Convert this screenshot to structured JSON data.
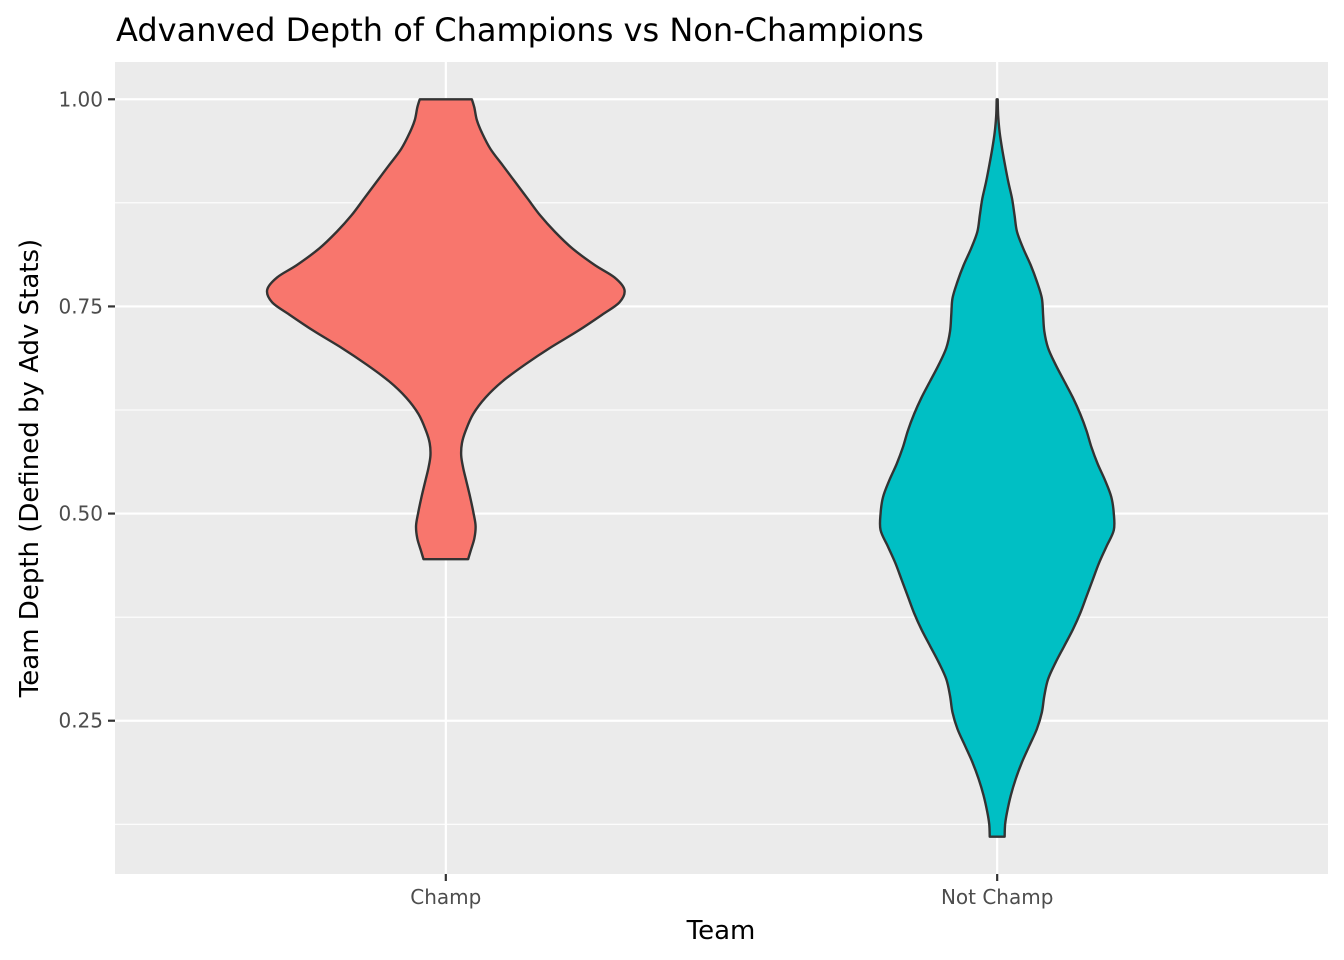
{
  "chart_data": {
    "type": "violin",
    "title": "Advanved Depth of Champions vs Non-Champions",
    "xlabel": "Team",
    "ylabel": "Team Depth (Defined by Adv Stats)",
    "categories": [
      "Champ",
      "Not Champ"
    ],
    "y_ticks": [
      "0.25",
      "0.50",
      "0.75",
      "1.00"
    ],
    "ylim": [
      0.065,
      1.045
    ],
    "grid": true,
    "legend": "none",
    "series": [
      {
        "category": "Champ",
        "color": "#F8766D",
        "range": [
          0.445,
          1.0
        ],
        "density_profile": [
          [
            1.0,
            0.105
          ],
          [
            0.99,
            0.115
          ],
          [
            0.975,
            0.125
          ],
          [
            0.96,
            0.145
          ],
          [
            0.94,
            0.18
          ],
          [
            0.92,
            0.23
          ],
          [
            0.9,
            0.28
          ],
          [
            0.88,
            0.33
          ],
          [
            0.86,
            0.38
          ],
          [
            0.84,
            0.44
          ],
          [
            0.82,
            0.51
          ],
          [
            0.8,
            0.6
          ],
          [
            0.785,
            0.68
          ],
          [
            0.77,
            0.72
          ],
          [
            0.755,
            0.7
          ],
          [
            0.74,
            0.63
          ],
          [
            0.72,
            0.53
          ],
          [
            0.7,
            0.42
          ],
          [
            0.68,
            0.32
          ],
          [
            0.66,
            0.23
          ],
          [
            0.64,
            0.16
          ],
          [
            0.62,
            0.11
          ],
          [
            0.6,
            0.08
          ],
          [
            0.585,
            0.065
          ],
          [
            0.57,
            0.062
          ],
          [
            0.555,
            0.07
          ],
          [
            0.54,
            0.082
          ],
          [
            0.52,
            0.098
          ],
          [
            0.5,
            0.112
          ],
          [
            0.485,
            0.12
          ],
          [
            0.47,
            0.115
          ],
          [
            0.455,
            0.1
          ],
          [
            0.445,
            0.09
          ]
        ]
      },
      {
        "category": "Not Champ",
        "color": "#00BFC4",
        "range": [
          0.11,
          1.0
        ],
        "density_profile": [
          [
            1.0,
            0.002
          ],
          [
            0.98,
            0.004
          ],
          [
            0.96,
            0.01
          ],
          [
            0.94,
            0.02
          ],
          [
            0.92,
            0.032
          ],
          [
            0.9,
            0.045
          ],
          [
            0.88,
            0.06
          ],
          [
            0.86,
            0.07
          ],
          [
            0.84,
            0.08
          ],
          [
            0.82,
            0.105
          ],
          [
            0.8,
            0.135
          ],
          [
            0.78,
            0.16
          ],
          [
            0.76,
            0.18
          ],
          [
            0.74,
            0.185
          ],
          [
            0.72,
            0.19
          ],
          [
            0.7,
            0.205
          ],
          [
            0.68,
            0.235
          ],
          [
            0.66,
            0.27
          ],
          [
            0.64,
            0.305
          ],
          [
            0.62,
            0.335
          ],
          [
            0.6,
            0.36
          ],
          [
            0.58,
            0.38
          ],
          [
            0.56,
            0.405
          ],
          [
            0.54,
            0.435
          ],
          [
            0.52,
            0.46
          ],
          [
            0.5,
            0.47
          ],
          [
            0.48,
            0.47
          ],
          [
            0.46,
            0.44
          ],
          [
            0.44,
            0.41
          ],
          [
            0.42,
            0.385
          ],
          [
            0.4,
            0.36
          ],
          [
            0.38,
            0.335
          ],
          [
            0.36,
            0.305
          ],
          [
            0.34,
            0.27
          ],
          [
            0.32,
            0.235
          ],
          [
            0.3,
            0.205
          ],
          [
            0.28,
            0.19
          ],
          [
            0.26,
            0.18
          ],
          [
            0.24,
            0.16
          ],
          [
            0.22,
            0.13
          ],
          [
            0.2,
            0.1
          ],
          [
            0.18,
            0.075
          ],
          [
            0.16,
            0.055
          ],
          [
            0.14,
            0.04
          ],
          [
            0.125,
            0.032
          ],
          [
            0.11,
            0.03
          ]
        ]
      }
    ],
    "colors": {
      "panel_background": "#EBEBEB",
      "grid_line": "#FFFFFF",
      "outline": "#333333",
      "tick_mark": "#333333"
    }
  }
}
